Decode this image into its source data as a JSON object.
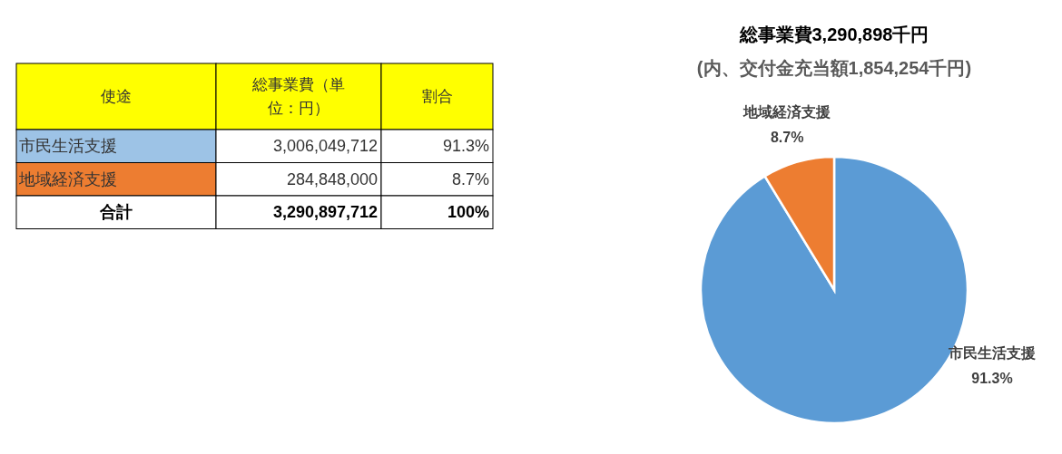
{
  "chart_data": {
    "type": "pie",
    "title": "総事業費3,290,898千円",
    "subtitle": "(内、交付金充当額1,854,254千円)",
    "categories": [
      "市民生活支援",
      "地域経済支援"
    ],
    "values": [
      91.3,
      8.7
    ],
    "value_labels": [
      "91.3%",
      "8.7%"
    ],
    "colors": [
      "#5b9bd5",
      "#ed7d31"
    ],
    "annotations": [
      "使途",
      "総事業費（単位：円）",
      "割合",
      "3,006,049,712",
      "91.3%",
      "284,848,000",
      "8.7%",
      "合計",
      "3,290,897,712",
      "100%"
    ]
  }
}
